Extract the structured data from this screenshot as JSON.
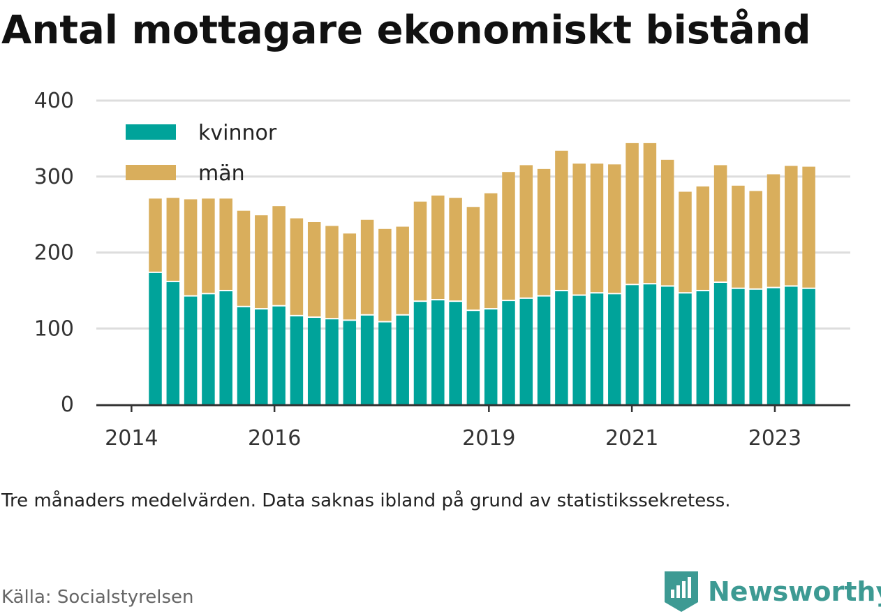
{
  "title": "Antal mottagare ekonomiskt bistånd",
  "note": "Tre månaders medelvärden. Data saknas ibland på grund av statistikssekretess.",
  "source": "Källa: Socialstyrelsen",
  "brand": {
    "name": "Newsworthy",
    "icon": "newsworthy-logo-icon",
    "color": "#3d9a93"
  },
  "colors": {
    "kvinnor": "#00a39a",
    "man": "#d9ae5c",
    "grid": "#dddddd",
    "axis": "#333333"
  },
  "chart_data": {
    "type": "bar",
    "stacked": true,
    "legend_position": "top-left",
    "grid": true,
    "ylim": [
      0,
      400
    ],
    "yticks": [
      "0",
      "100",
      "200",
      "300",
      "400"
    ],
    "xticks": [
      {
        "label": "2014",
        "at": 0
      },
      {
        "label": "2016",
        "at": 8
      },
      {
        "label": "2019",
        "at": 20
      },
      {
        "label": "2021",
        "at": 28
      },
      {
        "label": "2023",
        "at": 36
      }
    ],
    "series": [
      {
        "name": "kvinnor",
        "values": [
          173,
          161,
          142,
          145,
          149,
          128,
          125,
          129,
          116,
          114,
          112,
          110,
          117,
          108,
          117,
          135,
          137,
          135,
          123,
          125,
          136,
          139,
          142,
          149,
          143,
          146,
          145,
          157,
          158,
          155,
          146,
          149,
          160,
          152,
          151,
          153,
          155,
          152
        ]
      },
      {
        "name": "män",
        "values": [
          98,
          111,
          128,
          126,
          122,
          127,
          124,
          132,
          129,
          126,
          123,
          115,
          126,
          123,
          117,
          132,
          138,
          137,
          137,
          153,
          170,
          176,
          168,
          185,
          174,
          171,
          171,
          187,
          186,
          167,
          134,
          138,
          155,
          136,
          130,
          150,
          159,
          161
        ]
      }
    ]
  }
}
